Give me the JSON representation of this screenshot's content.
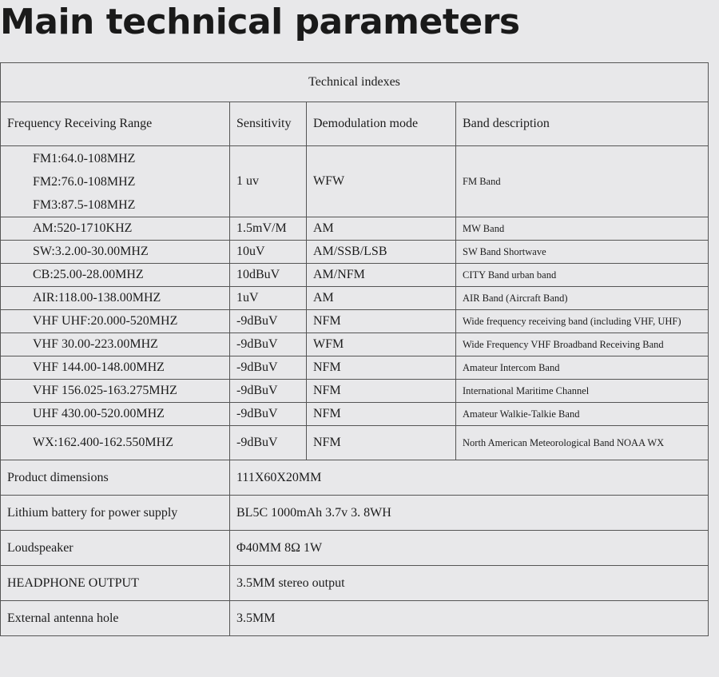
{
  "title": "Main technical parameters",
  "table": {
    "caption": "Technical indexes",
    "columns": [
      "Frequency Receiving Range",
      "Sensitivity",
      "Demodulation mode",
      "Band description"
    ],
    "rows": [
      [
        [
          "FM1:64.0-108MHZ",
          "FM2:76.0-108MHZ",
          "FM3:87.5-108MHZ"
        ],
        "1 uv",
        "WFW",
        "FM Band"
      ],
      [
        "AM:520-1710KHZ",
        "1.5mV/M",
        "AM",
        "MW Band"
      ],
      [
        "SW:3.2.00-30.00MHZ",
        "10uV",
        "AM/SSB/LSB",
        "SW Band Shortwave"
      ],
      [
        "CB:25.00-28.00MHZ",
        "10dBuV",
        "AM/NFM",
        "CITY Band urban band"
      ],
      [
        "AIR:118.00-138.00MHZ",
        "1uV",
        "AM",
        "AIR Band (Aircraft Band)"
      ],
      [
        "VHF UHF:20.000-520MHZ",
        "-9dBuV",
        "NFM",
        "Wide frequency receiving band (including VHF, UHF)"
      ],
      [
        "VHF 30.00-223.00MHZ",
        "-9dBuV",
        "WFM",
        "Wide Frequency VHF Broadband Receiving Band"
      ],
      [
        "VHF 144.00-148.00MHZ",
        "-9dBuV",
        "NFM",
        "Amateur Intercom Band"
      ],
      [
        "VHF 156.025-163.275MHZ",
        "-9dBuV",
        "NFM",
        "International Maritime Channel"
      ],
      [
        "UHF 430.00-520.00MHZ",
        "-9dBuV",
        "NFM",
        "Amateur Walkie-Talkie Band"
      ],
      [
        "WX:162.400-162.550MHZ",
        "-9dBuV",
        "NFM",
        "North American Meteorological Band NOAA WX"
      ]
    ],
    "specs": [
      [
        "Product dimensions",
        "111X60X20MM"
      ],
      [
        "Lithium battery for power supply",
        "BL5C 1000mAh  3.7v 3. 8WH"
      ],
      [
        "Loudspeaker",
        "Φ40MM 8Ω 1W"
      ],
      [
        "HEADPHONE OUTPUT",
        "3.5MM stereo output"
      ],
      [
        "External antenna hole",
        "3.5MM"
      ]
    ]
  }
}
